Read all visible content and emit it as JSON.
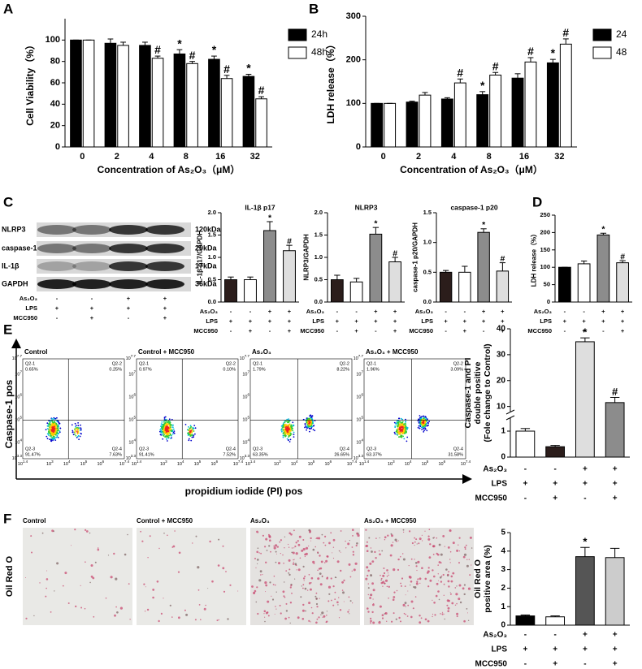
{
  "panel_labels": [
    "A",
    "B",
    "C",
    "D",
    "E",
    "F"
  ],
  "treatments": {
    "rows": [
      {
        "label": "As₂O₃",
        "signs": [
          "-",
          "-",
          "+",
          "+"
        ]
      },
      {
        "label": "LPS",
        "signs": [
          "+",
          "+",
          "+",
          "+"
        ]
      },
      {
        "label": "MCC950",
        "signs": [
          "-",
          "+",
          "-",
          "+"
        ]
      }
    ]
  },
  "blot": {
    "proteins": [
      "NLRP3",
      "caspase-1",
      "IL-1β",
      "GAPDH"
    ],
    "sizes": [
      "120kDa",
      "20kDa",
      "17kDa",
      "36kDa"
    ]
  },
  "flow": {
    "y_title": "Caspase-1 pos",
    "x_title": "propidium iodide (PI) pos",
    "tick_base": "10",
    "xtick_exp": [
      "1.4",
      "3",
      "4",
      "5",
      "6",
      "7.4"
    ],
    "ytick_exp": [
      "3.3",
      "4",
      "5",
      "6",
      "7",
      "7.7"
    ],
    "plots": [
      {
        "title": "Control",
        "quadrants": [
          [
            "Q2-1",
            "0.65%"
          ],
          [
            "Q2-2",
            "0.25%"
          ],
          [
            "Q2-3",
            "91.47%"
          ],
          [
            "Q2-4",
            "7.63%"
          ]
        ]
      },
      {
        "title": "Control + MCC950",
        "quadrants": [
          [
            "Q2-1",
            "0.97%"
          ],
          [
            "Q2-2",
            "0.10%"
          ],
          [
            "Q2-3",
            "91.41%"
          ],
          [
            "Q2-4",
            "7.52%"
          ]
        ]
      },
      {
        "title": "As₂O₃",
        "quadrants": [
          [
            "Q2-1",
            "1.79%"
          ],
          [
            "Q2-2",
            "8.22%"
          ],
          [
            "Q2-3",
            "63.35%"
          ],
          [
            "Q2-4",
            "26.65%"
          ]
        ]
      },
      {
        "title": "As₂O₃ + MCC950",
        "quadrants": [
          [
            "Q2-1",
            "1.96%"
          ],
          [
            "Q2-2",
            "3.09%"
          ],
          [
            "Q2-3",
            "63.37%"
          ],
          [
            "Q2-4",
            "31.58%"
          ]
        ]
      }
    ]
  },
  "oil": {
    "row_label": "Oil Red O",
    "titles": [
      "Control",
      "Control + MCC950",
      "As₂O₃",
      "As₂O₃ + MCC950"
    ]
  },
  "chart_data": [
    {
      "type": "grouped_bar",
      "ylabel": "Cell Viability（%）",
      "xlabel": "Concentration of As₂O₃（μM）",
      "categories": [
        "0",
        "2",
        "4",
        "8",
        "16",
        "32"
      ],
      "ylim": [
        0,
        120
      ],
      "yticks": [
        0,
        20,
        40,
        60,
        80,
        100
      ],
      "series": [
        {
          "name": "24h",
          "color": "#000000",
          "values": [
            100,
            97,
            95,
            87,
            82,
            66
          ],
          "errors": [
            0,
            4,
            3,
            4,
            3,
            2
          ],
          "annotations": [
            null,
            null,
            null,
            "*",
            "*",
            "*"
          ]
        },
        {
          "name": "48h",
          "color": "#ffffff",
          "values": [
            100,
            95,
            83,
            78,
            64,
            45
          ],
          "errors": [
            0,
            3,
            2,
            2,
            3,
            2
          ],
          "annotations": [
            null,
            null,
            "#",
            "#",
            "#",
            "#"
          ]
        }
      ]
    },
    {
      "type": "grouped_bar",
      "ylabel": "LDH release（%）",
      "xlabel": "Concentration of As₂O₃（μM）",
      "categories": [
        "0",
        "2",
        "4",
        "8",
        "16",
        "32"
      ],
      "ylim": [
        0,
        300
      ],
      "yticks": [
        0,
        100,
        200,
        300
      ],
      "series": [
        {
          "name": "24",
          "color": "#000000",
          "values": [
            100,
            103,
            110,
            120,
            158,
            193
          ],
          "errors": [
            0,
            2,
            3,
            7,
            10,
            8
          ],
          "annotations": [
            null,
            null,
            null,
            "*",
            null,
            "*"
          ]
        },
        {
          "name": "48",
          "color": "#ffffff",
          "values": [
            100,
            119,
            147,
            165,
            195,
            236
          ],
          "errors": [
            0,
            6,
            9,
            6,
            10,
            12
          ],
          "annotations": [
            null,
            null,
            "#",
            "#",
            "#",
            "#"
          ]
        }
      ]
    },
    {
      "type": "bar",
      "title": "IL-1β p17",
      "ylabel": "IL-1β p17/GAPDH",
      "ylim": [
        0,
        2
      ],
      "yticks": [
        {
          "value": 0,
          "label": "0.0"
        },
        0.5,
        {
          "value": 1,
          "label": "1.0"
        },
        1.5,
        {
          "value": 2,
          "label": "2.0"
        }
      ],
      "values": [
        0.5,
        0.5,
        1.6,
        1.15
      ],
      "errors": [
        0.06,
        0.06,
        0.2,
        0.12
      ],
      "annotations": [
        null,
        null,
        "*",
        "#"
      ],
      "colors": [
        "#2b1d1b",
        "#ffffff",
        "#8c8c8c",
        "#dedede"
      ]
    },
    {
      "type": "bar",
      "title": "NLRP3",
      "ylabel": "NLRP3/GAPDH",
      "ylim": [
        0,
        2
      ],
      "yticks": [
        {
          "value": 0,
          "label": "0.0"
        },
        0.5,
        {
          "value": 1,
          "label": "1.0"
        },
        1.5,
        {
          "value": 2,
          "label": "2.0"
        }
      ],
      "values": [
        0.5,
        0.45,
        1.52,
        0.9
      ],
      "errors": [
        0.1,
        0.08,
        0.15,
        0.1
      ],
      "annotations": [
        null,
        null,
        "*",
        "#"
      ],
      "colors": [
        "#2b1d1b",
        "#ffffff",
        "#8c8c8c",
        "#dedede"
      ]
    },
    {
      "type": "bar",
      "title": "caspase-1 p20",
      "ylabel": "caspase-1 p20/GAPDH",
      "ylim": [
        0,
        1.5
      ],
      "yticks": [
        {
          "value": 0,
          "label": "0.0"
        },
        0.5,
        {
          "value": 1,
          "label": "1.0"
        },
        1.5
      ],
      "values": [
        0.5,
        0.5,
        1.17,
        0.52
      ],
      "errors": [
        0.03,
        0.1,
        0.06,
        0.14
      ],
      "annotations": [
        null,
        null,
        "*",
        "#"
      ],
      "colors": [
        "#2b1d1b",
        "#ffffff",
        "#8c8c8c",
        "#dedede"
      ]
    },
    {
      "type": "bar",
      "ylabel": "LDH release（%）",
      "ylim": [
        0,
        250
      ],
      "yticks": [
        0,
        50,
        100,
        150,
        200,
        250
      ],
      "values": [
        100,
        110,
        193,
        113
      ],
      "errors": [
        0,
        8,
        5,
        6
      ],
      "annotations": [
        null,
        null,
        "*",
        "#"
      ],
      "colors": [
        "#000000",
        "#ffffff",
        "#8c8c8c",
        "#dedede"
      ]
    },
    {
      "type": "bar",
      "ylabel": [
        "Caspase-1 and PI",
        "double positive",
        "(Fole change to Control)"
      ],
      "ylim": [
        0,
        40
      ],
      "ybreak": [
        1.5,
        8
      ],
      "yticks": [
        0,
        1,
        10,
        20,
        30,
        40
      ],
      "values": [
        1,
        0.4,
        35,
        11.5
      ],
      "errors": [
        0.1,
        0.05,
        1.5,
        2
      ],
      "annotations": [
        null,
        null,
        "*",
        "#"
      ],
      "colors": [
        "#ffffff",
        "#2b1d1b",
        "#dedede",
        "#8c8c8c"
      ]
    },
    {
      "type": "bar",
      "ylabel": [
        "Oil Red O",
        "positive area (%)"
      ],
      "ylim": [
        0,
        5
      ],
      "yticks": [
        0,
        1,
        2,
        3,
        4,
        5
      ],
      "values": [
        0.5,
        0.45,
        3.7,
        3.65
      ],
      "errors": [
        0.05,
        0.05,
        0.5,
        0.5
      ],
      "annotations": [
        null,
        null,
        "*",
        null
      ],
      "colors": [
        "#000000",
        "#ffffff",
        "#555555",
        "#cccccc"
      ]
    }
  ]
}
